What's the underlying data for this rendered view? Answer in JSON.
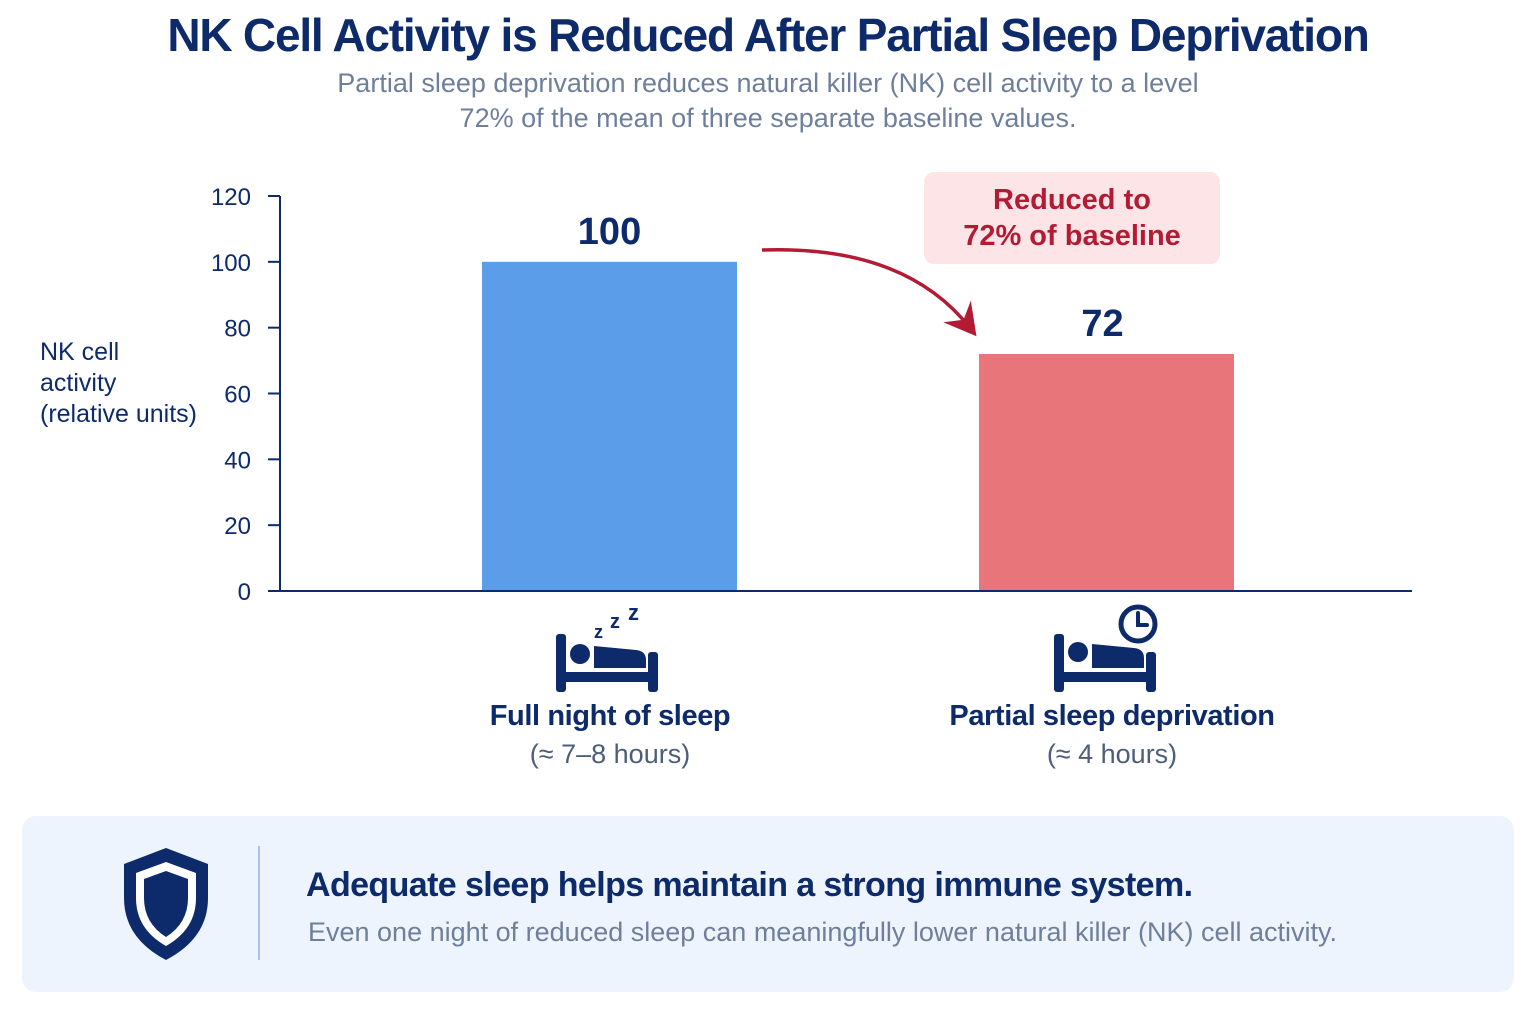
{
  "title": "NK Cell Activity is Reduced After Partial Sleep Deprivation",
  "subtitle_lines": [
    "Partial sleep deprivation reduces natural killer (NK) cell activity to a level",
    "72% of the mean of three separate baseline values."
  ],
  "colors": {
    "title": "#0d2a6b",
    "bar_full": "#5b9de9",
    "bar_partial": "#e7757a",
    "accent_red": "#b31b34",
    "callout_bg": "#fde4e6",
    "banner_bg": "#eef4fd",
    "axis": "#0d2a6b"
  },
  "chart_data": {
    "type": "bar",
    "ylabel_lines": [
      "NK cell",
      "activity",
      "(relative units)"
    ],
    "ylim": [
      0,
      120
    ],
    "yticks": [
      0,
      20,
      40,
      60,
      80,
      100,
      120
    ],
    "grid": false,
    "categories": [
      {
        "name": "Full night of sleep",
        "detail": "(≈ 7–8 hours)",
        "icon": "sleeping-bed-icon"
      },
      {
        "name": "Partial sleep deprivation",
        "detail": "(≈ 4 hours)",
        "icon": "bed-clock-icon"
      }
    ],
    "values": [
      100,
      72
    ],
    "value_labels": [
      "100",
      "72"
    ],
    "annotation": {
      "lines": [
        "Reduced to",
        "72% of baseline"
      ],
      "arrow": "from bar 1 to bar 2"
    }
  },
  "banner": {
    "icon": "shield-icon",
    "headline": "Adequate sleep helps maintain a strong immune system.",
    "body": "Even one night of reduced sleep can meaningfully lower natural killer (NK) cell activity."
  }
}
